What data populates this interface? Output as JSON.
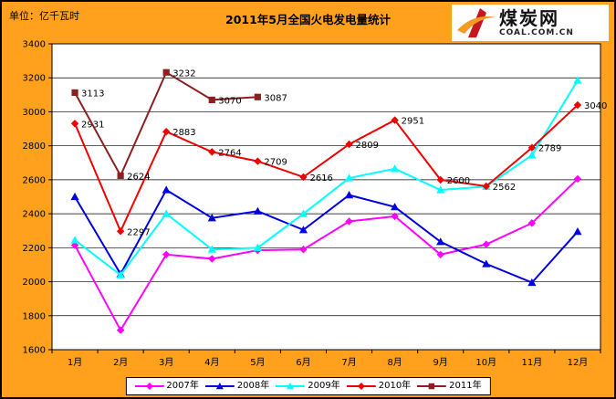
{
  "header": {
    "unit_label": "单位：亿千瓦时",
    "title": "2011年5月全国火电发电量统计"
  },
  "logo": {
    "name": "煤炭网",
    "domain": "COAL.COM.CN"
  },
  "colors": {
    "background": "#FFA11C",
    "plot_background": "#FFFFFF",
    "gridline": "#000000",
    "logo_red": "#C8161D",
    "logo_orange": "#F59A23"
  },
  "chart_data": {
    "type": "line",
    "title": "2011年5月全国火电发电量统计",
    "unit": "亿千瓦时",
    "categories": [
      "1月",
      "2月",
      "3月",
      "4月",
      "5月",
      "6月",
      "7月",
      "8月",
      "9月",
      "10月",
      "11月",
      "12月"
    ],
    "ylim": [
      1600,
      3400
    ],
    "ytick_step": 200,
    "grid": true,
    "legend_position": "bottom",
    "series": [
      {
        "name": "2007年",
        "color": "#FF00FF",
        "marker": "diamond",
        "labeled": false,
        "values": [
          2215,
          1715,
          2160,
          2135,
          2185,
          2190,
          2355,
          2385,
          2160,
          2220,
          2345,
          2605
        ]
      },
      {
        "name": "2008年",
        "color": "#0000E0",
        "marker": "triangle",
        "labeled": false,
        "values": [
          2500,
          2045,
          2540,
          2375,
          2415,
          2305,
          2510,
          2440,
          2235,
          2105,
          1995,
          2295
        ]
      },
      {
        "name": "2009年",
        "color": "#00FFFF",
        "marker": "triangle",
        "labeled": false,
        "values": [
          2245,
          2040,
          2400,
          2190,
          2200,
          2400,
          2610,
          2665,
          2540,
          2560,
          2745,
          3185
        ]
      },
      {
        "name": "2010年",
        "color": "#F00000",
        "marker": "diamond",
        "labeled": true,
        "values": [
          2931,
          2297,
          2883,
          2764,
          2709,
          2616,
          2809,
          2951,
          2600,
          2562,
          2789,
          3040
        ]
      },
      {
        "name": "2011年",
        "color": "#8B2020",
        "marker": "square",
        "labeled": true,
        "values": [
          3113,
          2624,
          3232,
          3070,
          3087
        ]
      }
    ]
  }
}
